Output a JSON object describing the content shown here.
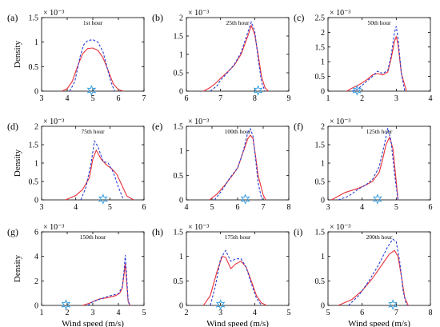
{
  "chart_data": [
    {
      "type": "line",
      "letter": "(a)",
      "title": "1st hour",
      "xlim": [
        3,
        7
      ],
      "xticks": [
        3,
        4,
        5,
        6,
        7
      ],
      "ylim": [
        0,
        1.5
      ],
      "yticks": [
        0,
        0.5,
        1,
        1.5
      ],
      "ytick_labels": [
        "0",
        "0.5",
        "1",
        "1.5"
      ],
      "exponent": "× 10⁻³",
      "ylabel": "Density",
      "xlabel": "",
      "series": [
        {
          "x": [
            3.8,
            4.0,
            4.2,
            4.4,
            4.6,
            4.8,
            5.0,
            5.2,
            5.4,
            5.6,
            5.8,
            6.0,
            6.2
          ],
          "y": [
            0.0,
            0.05,
            0.2,
            0.5,
            0.76,
            0.87,
            0.88,
            0.83,
            0.68,
            0.42,
            0.15,
            0.03,
            0.0
          ]
        },
        {
          "x": [
            4.1,
            4.3,
            4.5,
            4.65,
            4.8,
            5.0,
            5.2,
            5.4,
            5.55,
            5.7,
            5.85
          ],
          "y": [
            0.0,
            0.2,
            0.7,
            0.95,
            1.03,
            1.05,
            1.0,
            0.8,
            0.5,
            0.2,
            0.0
          ]
        }
      ],
      "marker_x": 4.95
    },
    {
      "type": "line",
      "letter": "(b)",
      "title": "25th hour",
      "xlim": [
        6,
        9
      ],
      "xticks": [
        6,
        7,
        8,
        9
      ],
      "ylim": [
        0,
        2
      ],
      "yticks": [
        0,
        0.5,
        1,
        1.5,
        2
      ],
      "ytick_labels": [
        "0",
        "0.5",
        "1",
        "1.5",
        "2"
      ],
      "exponent": "× 10⁻³",
      "ylabel": "",
      "xlabel": "",
      "series": [
        {
          "x": [
            6.5,
            6.7,
            6.9,
            7.0,
            7.2,
            7.4,
            7.6,
            7.8,
            7.9,
            8.0,
            8.1,
            8.2,
            8.3,
            8.4
          ],
          "y": [
            0.0,
            0.1,
            0.25,
            0.35,
            0.52,
            0.7,
            1.0,
            1.5,
            1.78,
            1.55,
            1.0,
            0.4,
            0.1,
            0.0
          ]
        },
        {
          "x": [
            6.7,
            6.9,
            7.0,
            7.2,
            7.4,
            7.6,
            7.8,
            7.9,
            8.0,
            8.1,
            8.2,
            8.3
          ],
          "y": [
            0.0,
            0.15,
            0.3,
            0.5,
            0.72,
            1.05,
            1.6,
            1.88,
            1.65,
            0.9,
            0.25,
            0.0
          ]
        }
      ],
      "marker_x": 8.1
    },
    {
      "type": "line",
      "letter": "(c)",
      "title": "50th hour",
      "xlim": [
        1,
        4
      ],
      "xticks": [
        1,
        2,
        3,
        4
      ],
      "ylim": [
        0,
        2.5
      ],
      "yticks": [
        0,
        0.5,
        1,
        1.5,
        2,
        2.5
      ],
      "ytick_labels": [
        "0",
        "0.5",
        "1",
        "1.5",
        "2",
        "2.5"
      ],
      "exponent": "× 10⁻³",
      "ylabel": "",
      "xlabel": "",
      "series": [
        {
          "x": [
            1.55,
            1.7,
            1.85,
            2.0,
            2.15,
            2.3,
            2.45,
            2.6,
            2.75,
            2.85,
            2.95,
            3.0,
            3.05,
            3.15,
            3.3
          ],
          "y": [
            0.0,
            0.1,
            0.18,
            0.28,
            0.4,
            0.55,
            0.6,
            0.55,
            0.65,
            1.1,
            1.7,
            1.85,
            1.6,
            0.6,
            0.0
          ]
        },
        {
          "x": [
            1.7,
            1.85,
            2.0,
            2.15,
            2.3,
            2.45,
            2.6,
            2.75,
            2.85,
            2.95,
            3.0,
            3.05,
            3.15,
            3.25
          ],
          "y": [
            0.0,
            0.05,
            0.2,
            0.35,
            0.5,
            0.68,
            0.6,
            0.7,
            1.2,
            2.0,
            2.2,
            1.8,
            0.6,
            0.0
          ]
        }
      ],
      "marker_x": 1.85
    },
    {
      "type": "line",
      "letter": "(d)",
      "title": "75th hour",
      "xlim": [
        3,
        6
      ],
      "xticks": [
        3,
        4,
        5,
        6
      ],
      "ylim": [
        0,
        2
      ],
      "yticks": [
        0,
        0.5,
        1,
        1.5,
        2
      ],
      "ytick_labels": [
        "0",
        "0.5",
        "1",
        "1.5",
        "2"
      ],
      "exponent": "× 10⁻³",
      "ylabel": "Density",
      "xlabel": "",
      "series": [
        {
          "x": [
            3.7,
            4.0,
            4.2,
            4.4,
            4.5,
            4.6,
            4.75,
            4.9,
            5.05,
            5.2,
            5.35,
            5.5,
            5.7
          ],
          "y": [
            0.0,
            0.12,
            0.28,
            0.6,
            1.1,
            1.35,
            1.1,
            0.95,
            0.85,
            0.7,
            0.4,
            0.1,
            0.0
          ]
        },
        {
          "x": [
            4.15,
            4.3,
            4.45,
            4.55,
            4.65,
            4.8,
            4.95,
            5.1,
            5.25,
            5.4
          ],
          "y": [
            0.0,
            0.35,
            1.0,
            1.6,
            1.45,
            1.05,
            1.0,
            0.75,
            0.35,
            0.0
          ]
        }
      ],
      "marker_x": 4.8
    },
    {
      "type": "line",
      "letter": "(e)",
      "title": "100th hour",
      "xlim": [
        4,
        8
      ],
      "xticks": [
        4,
        5,
        6,
        7,
        8
      ],
      "ylim": [
        0,
        1.5
      ],
      "yticks": [
        0,
        0.5,
        1,
        1.5
      ],
      "ytick_labels": [
        "0",
        "0.5",
        "1",
        "1.5"
      ],
      "exponent": "× 10⁻³",
      "ylabel": "",
      "xlabel": "",
      "series": [
        {
          "x": [
            4.9,
            5.2,
            5.5,
            5.8,
            6.0,
            6.2,
            6.4,
            6.5,
            6.6,
            6.7,
            6.8,
            7.0,
            7.1
          ],
          "y": [
            0.0,
            0.12,
            0.3,
            0.5,
            0.65,
            0.95,
            1.25,
            1.32,
            1.25,
            0.9,
            0.5,
            0.1,
            0.0
          ]
        },
        {
          "x": [
            5.1,
            5.4,
            5.7,
            6.0,
            6.2,
            6.4,
            6.5,
            6.6,
            6.7,
            6.8,
            6.95
          ],
          "y": [
            0.0,
            0.2,
            0.45,
            0.65,
            0.95,
            1.38,
            1.45,
            1.3,
            0.85,
            0.35,
            0.0
          ]
        }
      ],
      "marker_x": 6.3
    },
    {
      "type": "line",
      "letter": "(f)",
      "title": "125th hour",
      "xlim": [
        3,
        6
      ],
      "xticks": [
        3,
        4,
        5,
        6
      ],
      "ylim": [
        0,
        2
      ],
      "yticks": [
        0,
        0.5,
        1,
        1.5,
        2
      ],
      "ytick_labels": [
        "0",
        "0.5",
        "1",
        "1.5",
        "2"
      ],
      "exponent": "× 10⁻³",
      "ylabel": "",
      "xlabel": "",
      "series": [
        {
          "x": [
            3.1,
            3.5,
            3.9,
            4.1,
            4.3,
            4.5,
            4.6,
            4.7,
            4.8,
            4.9,
            5.0,
            5.05
          ],
          "y": [
            0.0,
            0.2,
            0.32,
            0.4,
            0.5,
            0.75,
            1.1,
            1.5,
            1.7,
            1.4,
            0.5,
            0.0
          ]
        },
        {
          "x": [
            3.3,
            3.6,
            3.9,
            4.1,
            4.3,
            4.5,
            4.65,
            4.75,
            4.85,
            4.95,
            5.05
          ],
          "y": [
            0.0,
            0.1,
            0.3,
            0.4,
            0.55,
            0.9,
            1.5,
            1.95,
            1.6,
            0.7,
            0.0
          ]
        }
      ],
      "marker_x": 4.45
    },
    {
      "type": "line",
      "letter": "(g)",
      "title": "150th hour",
      "xlim": [
        1,
        5
      ],
      "xticks": [
        1,
        2,
        3,
        4,
        5
      ],
      "ylim": [
        0,
        6
      ],
      "yticks": [
        0,
        2,
        4,
        6
      ],
      "ytick_labels": [
        "0",
        "2",
        "4",
        "6"
      ],
      "exponent": "× 10⁻³",
      "ylabel": "Density",
      "xlabel": "Wind speed (m/s)",
      "series": [
        {
          "x": [
            2.6,
            2.9,
            3.1,
            3.3,
            3.5,
            3.7,
            3.9,
            4.05,
            4.15,
            4.22,
            4.27,
            4.32,
            4.38,
            4.45
          ],
          "y": [
            0.0,
            0.2,
            0.4,
            0.55,
            0.6,
            0.7,
            0.8,
            1.0,
            1.4,
            2.5,
            3.4,
            2.0,
            0.3,
            0.0
          ]
        },
        {
          "x": [
            2.8,
            3.0,
            3.2,
            3.4,
            3.6,
            3.8,
            4.0,
            4.15,
            4.22,
            4.27,
            4.32,
            4.38,
            4.45
          ],
          "y": [
            0.0,
            0.3,
            0.45,
            0.6,
            0.75,
            0.85,
            0.95,
            1.5,
            2.8,
            4.1,
            2.5,
            0.4,
            0.0
          ]
        }
      ],
      "marker_x": 1.95
    },
    {
      "type": "line",
      "letter": "(h)",
      "title": "175th hour",
      "xlim": [
        2,
        5
      ],
      "xticks": [
        2,
        3,
        4,
        5
      ],
      "ylim": [
        0,
        1.5
      ],
      "yticks": [
        0,
        0.5,
        1,
        1.5
      ],
      "ytick_labels": [
        "0",
        "0.5",
        "1",
        "1.5"
      ],
      "exponent": "× 10⁻³",
      "ylabel": "",
      "xlabel": "Wind speed (m/s)",
      "series": [
        {
          "x": [
            2.5,
            2.7,
            2.9,
            3.05,
            3.15,
            3.3,
            3.45,
            3.6,
            3.75,
            3.9,
            4.05,
            4.2,
            4.35
          ],
          "y": [
            0.0,
            0.2,
            0.7,
            1.0,
            0.98,
            0.75,
            0.85,
            0.9,
            0.78,
            0.5,
            0.2,
            0.05,
            0.0
          ]
        },
        {
          "x": [
            2.7,
            2.85,
            3.0,
            3.15,
            3.3,
            3.45,
            3.6,
            3.75,
            3.9,
            4.05,
            4.2
          ],
          "y": [
            0.0,
            0.4,
            0.95,
            1.12,
            0.9,
            0.95,
            0.95,
            0.78,
            0.45,
            0.15,
            0.0
          ]
        }
      ],
      "marker_x": 3.0
    },
    {
      "type": "line",
      "letter": "(i)",
      "title": "200th hour",
      "xlim": [
        5,
        8
      ],
      "xticks": [
        5,
        6,
        7,
        8
      ],
      "ylim": [
        0,
        1.5
      ],
      "yticks": [
        0,
        0.5,
        1,
        1.5
      ],
      "ytick_labels": [
        "0",
        "0.5",
        "1",
        "1.5"
      ],
      "exponent": "× 10⁻³",
      "ylabel": "",
      "xlabel": "Wind speed (m/s)",
      "series": [
        {
          "x": [
            5.3,
            5.7,
            6.0,
            6.3,
            6.6,
            6.8,
            6.95,
            7.05,
            7.15,
            7.25,
            7.35
          ],
          "y": [
            0.0,
            0.12,
            0.3,
            0.55,
            0.85,
            1.05,
            1.12,
            1.0,
            0.6,
            0.15,
            0.0
          ]
        },
        {
          "x": [
            5.6,
            5.9,
            6.2,
            6.5,
            6.75,
            6.9,
            7.0,
            7.1,
            7.2,
            7.3
          ],
          "y": [
            0.0,
            0.2,
            0.5,
            0.85,
            1.2,
            1.35,
            1.3,
            0.9,
            0.3,
            0.0
          ]
        }
      ],
      "marker_x": 6.9
    }
  ],
  "colors": {
    "kde": "#e8303a",
    "hist": "#2a3fd6",
    "marker": "#3aa0e0"
  }
}
